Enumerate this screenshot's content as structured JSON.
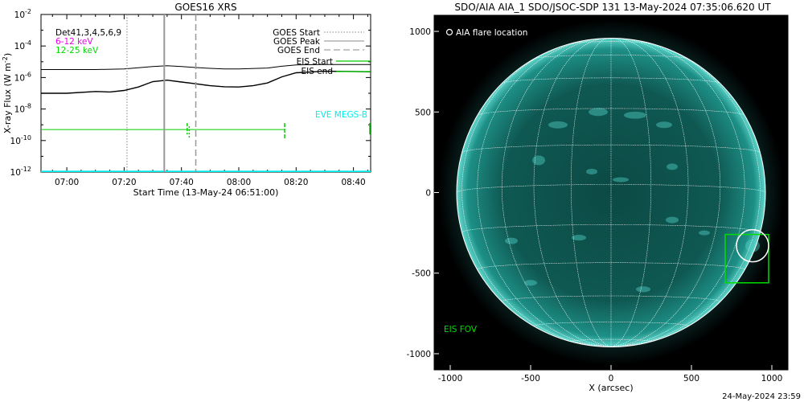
{
  "goes_panel": {
    "title": "GOES16 XRS",
    "ylabel": "X-ray Flux (W m",
    "ylabel_sup": "-2",
    "ylabel_tail": ")",
    "xlabel": "Start Time (13-May-24 06:51:00)",
    "legend": {
      "det": "Det41,3,4,5,6,9",
      "band1": "6-12 keV",
      "band2": "12-25 keV",
      "goes_start": "GOES Start",
      "goes_peak": "GOES Peak",
      "goes_end": "GOES End",
      "eis_start": "EIS Start",
      "eis_end": "EIS end",
      "eve": "EVE MEGS-B"
    },
    "colors": {
      "band1": "#ee00ee",
      "band2": "#00dd00",
      "eis": "#00cc00",
      "eve": "#00eeee"
    }
  },
  "aia_panel": {
    "title": "SDO/AIA AIA_1 SDO/JSOC-SDP 131 13-May-2024 07:35:06.620 UT",
    "flare_label": "AIA flare location",
    "fov_label": "EIS FOV",
    "xlabel": "X (arcsec)",
    "footer": "24-May-2024 23:59"
  },
  "chart_data": [
    {
      "type": "line",
      "title": "GOES16 XRS",
      "xlabel": "Start Time (13-May-24 06:51:00)",
      "ylabel": "X-ray Flux (W m^-2)",
      "y_scale": "log",
      "xlim": [
        "06:51",
        "08:46"
      ],
      "ylim": [
        1e-12,
        0.01
      ],
      "x_ticks": [
        "07:00",
        "07:20",
        "07:40",
        "08:00",
        "08:20",
        "08:40"
      ],
      "y_ticks": [
        "10^-12",
        "10^-10",
        "10^-8",
        "10^-6",
        "10^-4",
        "10^-2"
      ],
      "series": [
        {
          "name": "GOES long",
          "color": "#000000",
          "x": [
            "06:51",
            "07:00",
            "07:10",
            "07:20",
            "07:25",
            "07:30",
            "07:35",
            "07:40",
            "07:45",
            "07:50",
            "07:55",
            "08:00",
            "08:10",
            "08:15",
            "08:20",
            "08:30",
            "08:40",
            "08:46"
          ],
          "y": [
            3.2e-06,
            3.2e-06,
            3.2e-06,
            3.5e-06,
            4.2e-06,
            5e-06,
            5.6e-06,
            5e-06,
            4.3e-06,
            3.8e-06,
            3.5e-06,
            3.5e-06,
            4e-06,
            5.2e-06,
            6.3e-06,
            6.6e-06,
            6.6e-06,
            6.6e-06
          ]
        },
        {
          "name": "GOES short",
          "color": "#000000",
          "x": [
            "06:51",
            "07:00",
            "07:10",
            "07:15",
            "07:20",
            "07:25",
            "07:30",
            "07:35",
            "07:40",
            "07:45",
            "07:50",
            "07:55",
            "08:00",
            "08:05",
            "08:10",
            "08:15",
            "08:20",
            "08:30",
            "08:40",
            "08:46"
          ],
          "y": [
            1e-07,
            1e-07,
            1.3e-07,
            1.2e-07,
            1.5e-07,
            2.5e-07,
            5.5e-07,
            6.8e-07,
            5.2e-07,
            4e-07,
            3e-07,
            2.6e-07,
            2.5e-07,
            3e-07,
            4.5e-07,
            1.1e-06,
            2e-06,
            2.5e-06,
            2.4e-06,
            2.3e-06
          ]
        },
        {
          "name": "EIS coverage",
          "color": "#00cc00",
          "x": [
            "06:51",
            "08:16"
          ],
          "y": [
            5e-10,
            5e-10
          ]
        },
        {
          "name": "EVE MEGS-B",
          "color": "#00eeee",
          "x": [
            "06:51",
            "08:46"
          ],
          "y": [
            1.1e-12,
            1.1e-12
          ]
        }
      ],
      "markers": {
        "goes_start": "07:21",
        "goes_peak": "07:34",
        "goes_end": "07:45",
        "eis_start_markers": [
          "07:42",
          "07:43"
        ],
        "eis_end": "08:16"
      }
    },
    {
      "type": "scatter",
      "title": "SDO/AIA AIA_1 SDO/JSOC-SDP 131 13-May-2024 07:35:06.620 UT",
      "xlabel": "X (arcsec)",
      "ylabel": "",
      "xlim": [
        -1100,
        1100
      ],
      "ylim": [
        -1100,
        1100
      ],
      "x_ticks": [
        -1000,
        -500,
        0,
        500,
        1000
      ],
      "y_ticks": [
        -1000,
        -500,
        0,
        500,
        1000
      ],
      "solar_radius_arcsec": 960,
      "flare_location": {
        "x": 880,
        "y": -330
      },
      "eis_fov": {
        "x0": 710,
        "x1": 980,
        "y0": -560,
        "y1": -260
      }
    }
  ]
}
